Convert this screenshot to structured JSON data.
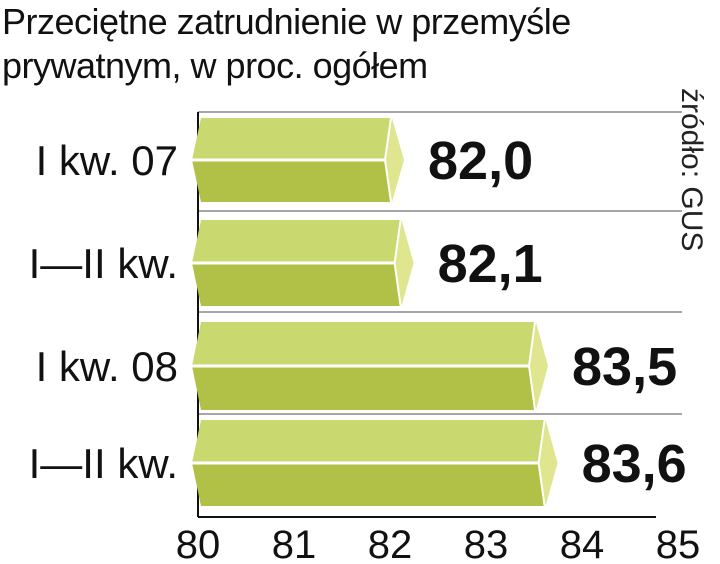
{
  "chart_data": {
    "type": "bar",
    "orientation": "horizontal",
    "title": "Przeciętne zatrudnienie w przemyśle prywatnym,  w proc. ogółem",
    "title_lines": [
      "Przeciętne zatrudnienie w przemyśle",
      "prywatnym,  w proc. ogółem"
    ],
    "source": "źródło: GUS",
    "categories": [
      "I kw. 07",
      "I—II kw.",
      "I kw. 08",
      "I—II kw."
    ],
    "values": [
      82.0,
      82.1,
      83.5,
      83.6
    ],
    "value_labels": [
      "82,0",
      "82,1",
      "83,5",
      "83,6"
    ],
    "xlim": [
      80,
      85
    ],
    "xticks": [
      "80",
      "81",
      "82",
      "83",
      "84",
      "85"
    ],
    "grid": true,
    "colors": {
      "bar_top": "#c9d96f",
      "bar_bottom": "#b1c046",
      "bar_tip": "#dfe68f"
    }
  }
}
